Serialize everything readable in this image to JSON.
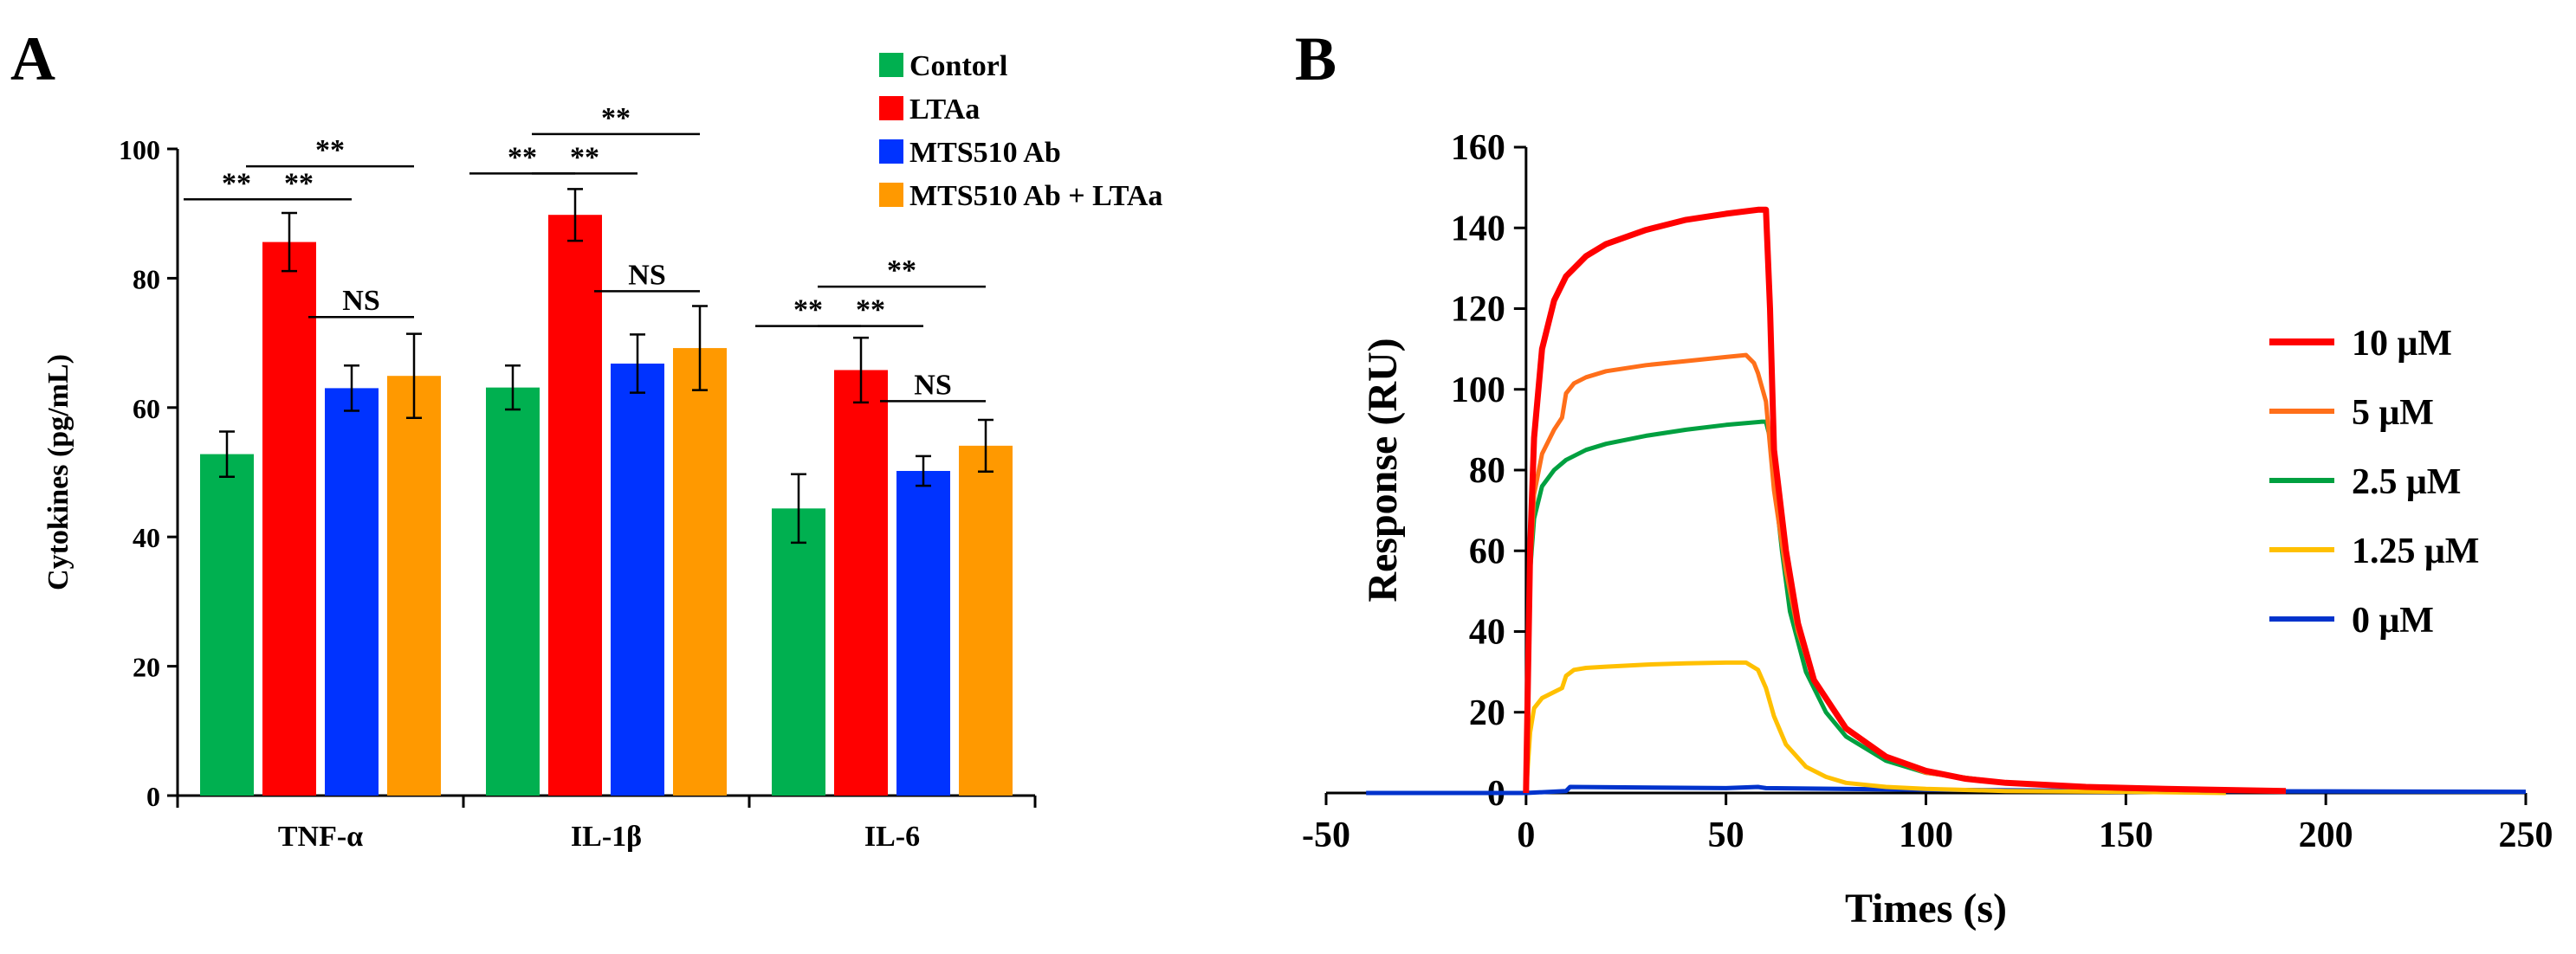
{
  "panel_labels": {
    "a": "A",
    "b": "B"
  },
  "chart_data": [
    {
      "id": "A",
      "type": "bar",
      "ylabel": "Cytokines (pg/mL)",
      "ylim": [
        0,
        100
      ],
      "yticks": [
        0,
        20,
        40,
        60,
        80,
        100
      ],
      "categories": [
        "TNF-α",
        "IL-1β",
        "IL-6"
      ],
      "series": [
        {
          "name": "Contorl",
          "color": "#00b050",
          "values": [
            52.8,
            63.1,
            44.4
          ],
          "errors": [
            3.5,
            3.4,
            5.3
          ]
        },
        {
          "name": "LTAa",
          "color": "#ff0000",
          "values": [
            85.6,
            89.8,
            65.8
          ],
          "errors": [
            4.5,
            4.0,
            5.0
          ]
        },
        {
          "name": "MTS510 Ab",
          "color": "#0033ff",
          "values": [
            63.0,
            66.8,
            50.2
          ],
          "errors": [
            3.5,
            4.5,
            2.3
          ]
        },
        {
          "name": "MTS510 Ab + LTAa",
          "color": "#ff9900",
          "values": [
            64.9,
            69.2,
            54.1
          ],
          "errors": [
            6.5,
            6.5,
            4.0
          ]
        }
      ],
      "annotations": [
        {
          "text": "**",
          "category": 0,
          "from": 0,
          "to": 1,
          "y": 92.2
        },
        {
          "text": "**",
          "category": 0,
          "from": 1,
          "to": 2,
          "y": 92.2
        },
        {
          "text": "**",
          "category": 0,
          "from": 1,
          "to": 3,
          "y": 97.3
        },
        {
          "text": "NS",
          "category": 0,
          "from": 2,
          "to": 3,
          "y": 74.0
        },
        {
          "text": "**",
          "category": 1,
          "from": 0,
          "to": 1,
          "y": 96.2
        },
        {
          "text": "**",
          "category": 1,
          "from": 1,
          "to": 2,
          "y": 96.2
        },
        {
          "text": "**",
          "category": 1,
          "from": 1,
          "to": 3,
          "y": 102.3
        },
        {
          "text": "NS",
          "category": 1,
          "from": 2,
          "to": 3,
          "y": 78.0
        },
        {
          "text": "**",
          "category": 2,
          "from": 0,
          "to": 1,
          "y": 72.6
        },
        {
          "text": "**",
          "category": 2,
          "from": 1,
          "to": 2,
          "y": 72.6
        },
        {
          "text": "**",
          "category": 2,
          "from": 1,
          "to": 3,
          "y": 78.7
        },
        {
          "text": "NS",
          "category": 2,
          "from": 2,
          "to": 3,
          "y": 61.0
        }
      ]
    },
    {
      "id": "B",
      "type": "line",
      "xlabel": "Times (s)",
      "ylabel": "Response (RU)",
      "xlim": [
        -50,
        250
      ],
      "ylim": [
        0,
        160
      ],
      "xticks": [
        -50,
        0,
        50,
        100,
        150,
        200,
        250
      ],
      "yticks": [
        0,
        20,
        40,
        60,
        80,
        100,
        120,
        140,
        160
      ],
      "series": [
        {
          "name": "10 μM",
          "color": "#ff0000",
          "x": [
            0,
            1,
            2,
            4,
            7,
            10,
            15,
            20,
            30,
            40,
            50,
            58,
            60,
            61,
            62,
            65,
            68,
            72,
            80,
            90,
            100,
            110,
            120,
            140,
            160,
            190
          ],
          "y": [
            0,
            60,
            88,
            110,
            122,
            128,
            133,
            136,
            139.5,
            142,
            143.5,
            144.5,
            144.5,
            120,
            85,
            60,
            42,
            28,
            16,
            9,
            5.5,
            3.5,
            2.5,
            1.5,
            1,
            0.5
          ]
        },
        {
          "name": "5 μM",
          "color": "#ff6f1a",
          "x": [
            0,
            1,
            2,
            4,
            7,
            9,
            10,
            12,
            15,
            20,
            30,
            40,
            50,
            55,
            57,
            58,
            60,
            62,
            65,
            68,
            72,
            80,
            90,
            100,
            120,
            150,
            175
          ],
          "y": [
            0,
            55,
            74,
            84,
            90,
            93,
            99,
            101.5,
            103,
            104.5,
            106,
            107,
            108,
            108.5,
            106.5,
            104,
            97,
            75,
            55,
            40,
            28,
            16,
            9,
            5,
            2.5,
            1,
            0.5
          ]
        },
        {
          "name": "2.5 μM",
          "color": "#00a040",
          "x": [
            0,
            1,
            2,
            4,
            7,
            10,
            15,
            20,
            30,
            40,
            50,
            59,
            60,
            61,
            62,
            64,
            66,
            70,
            75,
            80,
            90,
            100,
            120,
            150,
            175
          ],
          "y": [
            0,
            55,
            68,
            76,
            80,
            82.5,
            85,
            86.5,
            88.5,
            90,
            91.2,
            92,
            92,
            88,
            78,
            60,
            45,
            30,
            20,
            14,
            8,
            5,
            2.5,
            1,
            0.5
          ]
        },
        {
          "name": "1.25 μM",
          "color": "#ffc000",
          "x": [
            0,
            1,
            2,
            4,
            7,
            9,
            10,
            12,
            15,
            20,
            30,
            40,
            50,
            55,
            58,
            60,
            62,
            65,
            70,
            75,
            80,
            90,
            100,
            120,
            150,
            175
          ],
          "y": [
            0,
            15,
            21,
            23.5,
            25,
            26,
            29,
            30.5,
            31,
            31.3,
            31.8,
            32.1,
            32.3,
            32.3,
            30.5,
            26,
            19,
            12,
            6.5,
            4,
            2.5,
            1.5,
            1,
            0.5,
            0.3,
            0
          ]
        },
        {
          "name": "0 μM",
          "color": "#0033cc",
          "x": [
            -40,
            -10,
            0,
            10,
            11,
            50,
            58,
            60,
            100,
            150,
            200,
            250
          ],
          "y": [
            0,
            0,
            0,
            0.5,
            1.5,
            1.2,
            1.5,
            1.2,
            0.8,
            0.5,
            0.4,
            0.3
          ]
        }
      ]
    }
  ]
}
